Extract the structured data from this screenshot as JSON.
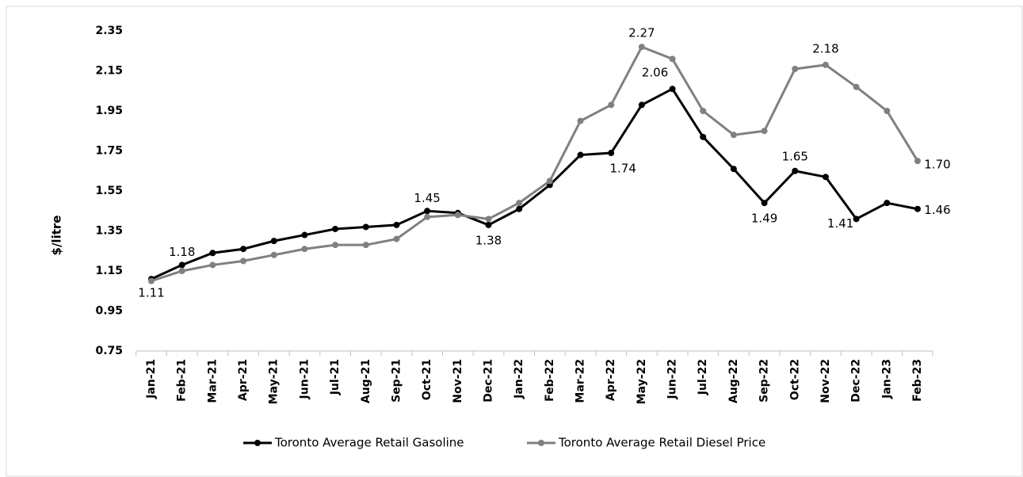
{
  "chart_data": {
    "type": "line",
    "y_label": "$/litre",
    "categories": [
      "Jan-21",
      "Feb-21",
      "Mar-21",
      "Apr-21",
      "May-21",
      "Jun-21",
      "Jul-21",
      "Aug-21",
      "Sep-21",
      "Oct-21",
      "Nov-21",
      "Dec-21",
      "Jan-22",
      "Feb-22",
      "Mar-22",
      "Apr-22",
      "May-22",
      "Jun-22",
      "Jul-22",
      "Aug-22",
      "Sep-22",
      "Oct-22",
      "Nov-22",
      "Dec-22",
      "Jan-23",
      "Feb-23"
    ],
    "series": [
      {
        "name": "Toronto Average Retail Gasoline",
        "color": "#000000",
        "values": [
          1.11,
          1.18,
          1.24,
          1.26,
          1.3,
          1.33,
          1.36,
          1.37,
          1.38,
          1.45,
          1.44,
          1.38,
          1.46,
          1.58,
          1.73,
          1.74,
          1.98,
          2.06,
          1.82,
          1.66,
          1.49,
          1.65,
          1.62,
          1.41,
          1.49,
          1.46
        ],
        "value_labels": [
          "1.11",
          "1.18",
          null,
          null,
          null,
          null,
          null,
          null,
          null,
          "1.45",
          null,
          "1.38",
          null,
          null,
          null,
          "1.74",
          null,
          "2.06",
          null,
          null,
          "1.49",
          "1.65",
          null,
          "1.41",
          null,
          "1.46"
        ]
      },
      {
        "name": "Toronto Average Retail Diesel Price",
        "color": "#808080",
        "values": [
          1.1,
          1.15,
          1.18,
          1.2,
          1.23,
          1.26,
          1.28,
          1.28,
          1.31,
          1.42,
          1.43,
          1.41,
          1.49,
          1.6,
          1.9,
          1.98,
          2.27,
          2.21,
          1.95,
          1.83,
          1.85,
          2.16,
          2.18,
          2.07,
          1.95,
          1.7
        ],
        "value_labels": [
          null,
          null,
          null,
          null,
          null,
          null,
          null,
          null,
          null,
          null,
          null,
          null,
          null,
          null,
          null,
          null,
          "2.27",
          null,
          null,
          null,
          null,
          null,
          "2.18",
          null,
          null,
          "1.70"
        ]
      }
    ],
    "ylim": [
      0.75,
      2.35
    ],
    "yticks": [
      0.75,
      0.95,
      1.15,
      1.35,
      1.55,
      1.75,
      1.95,
      2.15,
      2.35
    ],
    "grid": false,
    "legend": "bottom"
  }
}
